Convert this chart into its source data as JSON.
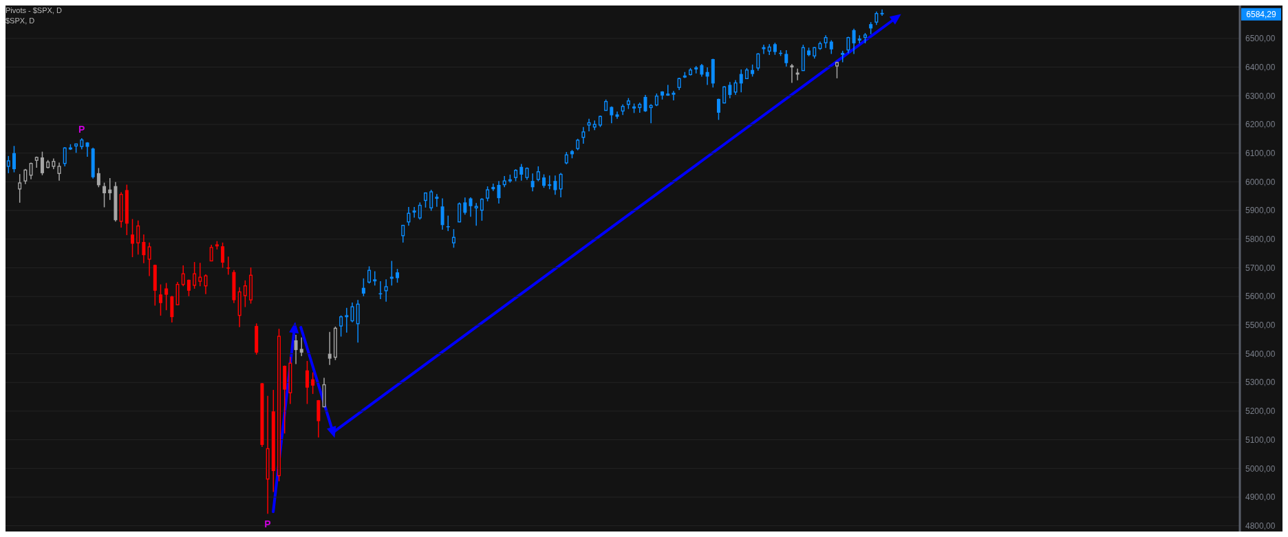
{
  "chart_data": {
    "type": "candlestick",
    "title": "Pivots - $SPX, D",
    "subtitle": "$SPX, D",
    "categories": [
      null,
      null,
      null,
      null,
      null,
      null,
      null,
      null,
      null,
      null,
      null,
      null,
      null,
      null,
      null,
      null,
      null,
      null,
      null,
      null,
      null,
      null,
      null,
      null,
      null,
      null,
      null,
      null,
      null,
      null,
      null,
      null,
      null,
      null,
      null,
      null,
      null,
      null,
      null,
      null,
      null,
      null,
      null,
      null,
      null,
      null,
      null,
      null,
      null,
      null,
      null,
      null,
      null,
      null,
      null,
      null,
      null,
      null,
      null,
      null,
      null,
      null,
      null,
      null,
      null,
      null,
      null,
      null,
      null,
      null,
      null,
      null,
      null,
      null,
      null,
      null,
      null,
      null,
      null,
      null,
      null,
      null,
      null,
      null,
      null,
      null,
      null,
      null,
      null,
      null,
      null,
      null,
      null,
      null,
      null,
      null,
      null,
      null,
      null,
      null,
      null,
      null,
      null,
      null,
      null,
      null,
      null,
      null,
      null,
      null,
      null,
      null,
      null,
      null,
      null,
      null,
      null,
      null,
      null,
      null,
      null,
      null,
      null,
      null,
      null,
      null,
      null,
      null,
      null,
      null,
      null,
      null,
      null,
      null,
      null,
      null,
      null,
      null,
      null,
      null,
      null,
      null,
      null,
      null,
      null,
      null,
      null,
      null,
      null,
      null,
      null,
      null,
      null,
      null,
      null,
      null,
      null,
      null,
      null,
      null,
      null,
      null,
      null,
      null,
      null,
      null,
      null,
      null,
      null,
      null,
      null,
      null,
      null,
      null,
      null,
      null,
      null,
      null,
      null,
      null,
      null,
      null,
      null,
      null,
      null,
      null,
      null,
      null,
      null,
      null,
      null,
      null,
      null,
      null,
      null,
      null,
      null,
      null,
      null,
      null,
      null,
      null,
      null,
      null,
      null,
      null,
      null,
      null,
      null,
      null,
      null,
      null,
      null,
      null,
      null,
      null,
      null,
      null,
      null
    ],
    "ohlc": [
      [
        6054,
        6090,
        6030,
        6073
      ],
      [
        6100,
        6125,
        6033,
        6044
      ],
      [
        5975,
        6027,
        5927,
        5996
      ],
      [
        6003,
        6045,
        5992,
        6041
      ],
      [
        6023,
        6067,
        6009,
        6064
      ],
      [
        6075,
        6088,
        6049,
        6085
      ],
      [
        6085,
        6105,
        6023,
        6030
      ],
      [
        6050,
        6076,
        6047,
        6069
      ],
      [
        6054,
        6081,
        6044,
        6071
      ],
      [
        6029,
        6067,
        6004,
        6054
      ],
      [
        6064,
        6121,
        6054,
        6118
      ],
      [
        6117,
        6131,
        6111,
        6118
      ],
      [
        6125,
        6133,
        6101,
        6132
      ],
      [
        6123,
        6152,
        6113,
        6146
      ],
      [
        6137,
        6138,
        6087,
        6122
      ],
      [
        6116,
        6119,
        6011,
        6016
      ],
      [
        6030,
        6048,
        5981,
        5988
      ],
      [
        5985,
        5997,
        5911,
        5960
      ],
      [
        5973,
        6013,
        5937,
        5960
      ],
      [
        5985,
        5999,
        5861,
        5866
      ],
      [
        5862,
        5964,
        5840,
        5956
      ],
      [
        5971,
        5990,
        5814,
        5854
      ],
      [
        5816,
        5870,
        5737,
        5784
      ],
      [
        5787,
        5865,
        5746,
        5846
      ],
      [
        5790,
        5816,
        5716,
        5744
      ],
      [
        5730,
        5788,
        5671,
        5773
      ],
      [
        5710,
        5711,
        5568,
        5620
      ],
      [
        5607,
        5642,
        5533,
        5577
      ],
      [
        5628,
        5647,
        5552,
        5606
      ],
      [
        5600,
        5602,
        5509,
        5528
      ],
      [
        5571,
        5651,
        5570,
        5642
      ],
      [
        5642,
        5708,
        5636,
        5679
      ],
      [
        5658,
        5659,
        5601,
        5620
      ],
      [
        5639,
        5720,
        5627,
        5679
      ],
      [
        5653,
        5717,
        5636,
        5667
      ],
      [
        5637,
        5677,
        5608,
        5672
      ],
      [
        5724,
        5780,
        5723,
        5771
      ],
      [
        5779,
        5793,
        5764,
        5780
      ],
      [
        5775,
        5788,
        5700,
        5718
      ],
      [
        5701,
        5739,
        5676,
        5700
      ],
      [
        5685,
        5692,
        5577,
        5587
      ],
      [
        5534,
        5632,
        5493,
        5616
      ],
      [
        5603,
        5656,
        5563,
        5637
      ],
      [
        5588,
        5701,
        5575,
        5674
      ],
      [
        5497,
        5506,
        5397,
        5404
      ],
      [
        5297,
        5298,
        5075,
        5082
      ],
      [
        4963,
        5253,
        4842,
        5069
      ],
      [
        5199,
        5274,
        4918,
        4991
      ],
      [
        4975,
        5487,
        4955,
        5461
      ],
      [
        5358,
        5359,
        5122,
        5275
      ],
      [
        5264,
        5389,
        5225,
        5367
      ],
      [
        5447,
        5466,
        5364,
        5413
      ],
      [
        5417,
        5457,
        5392,
        5404
      ],
      [
        5342,
        5375,
        5225,
        5282
      ],
      [
        5311,
        5335,
        5260,
        5289
      ],
      [
        5238,
        5239,
        5108,
        5165
      ],
      [
        5215,
        5316,
        5214,
        5292
      ],
      [
        5400,
        5476,
        5361,
        5383
      ],
      [
        5388,
        5495,
        5378,
        5489
      ],
      [
        5497,
        5534,
        5460,
        5529
      ],
      [
        5532,
        5560,
        5474,
        5533
      ],
      [
        5515,
        5579,
        5510,
        5564
      ],
      [
        5505,
        5588,
        5439,
        5573
      ],
      [
        5630,
        5663,
        5601,
        5610
      ],
      [
        5650,
        5705,
        5645,
        5691
      ],
      [
        5657,
        5688,
        5638,
        5658
      ],
      [
        5611,
        5653,
        5591,
        5610
      ],
      [
        5620,
        5660,
        5582,
        5634
      ],
      [
        5666,
        5724,
        5638,
        5667
      ],
      [
        5684,
        5696,
        5648,
        5664
      ],
      [
        5812,
        5850,
        5788,
        5848
      ],
      [
        5860,
        5912,
        5847,
        5890
      ],
      [
        5897,
        5912,
        5875,
        5898
      ],
      [
        5874,
        5928,
        5868,
        5918
      ],
      [
        5935,
        5963,
        5910,
        5961
      ],
      [
        5909,
        5972,
        5899,
        5965
      ],
      [
        5945,
        5957,
        5913,
        5946
      ],
      [
        5914,
        5942,
        5833,
        5849
      ],
      [
        5845,
        5882,
        5828,
        5844
      ],
      [
        5787,
        5835,
        5770,
        5806
      ],
      [
        5860,
        5928,
        5859,
        5923
      ],
      [
        5928,
        5945,
        5885,
        5892
      ],
      [
        5942,
        5946,
        5878,
        5915
      ],
      [
        5909,
        5926,
        5847,
        5914
      ],
      [
        5901,
        5943,
        5864,
        5939
      ],
      [
        5943,
        5984,
        5932,
        5972
      ],
      [
        5982,
        5994,
        5968,
        5974
      ],
      [
        5989,
        6003,
        5924,
        5943
      ],
      [
        5990,
        6020,
        5981,
        6003
      ],
      [
        6006,
        6025,
        5997,
        6007
      ],
      [
        6015,
        6044,
        6002,
        6040
      ],
      [
        6052,
        6062,
        6004,
        6025
      ],
      [
        6015,
        6050,
        6007,
        6047
      ],
      [
        6003,
        6029,
        5967,
        5981
      ],
      [
        6008,
        6054,
        6002,
        6035
      ],
      [
        6015,
        6026,
        5979,
        5986
      ],
      [
        5991,
        6022,
        5974,
        5986
      ],
      [
        6003,
        6022,
        5955,
        5971
      ],
      [
        5975,
        6031,
        5946,
        6026
      ],
      [
        6066,
        6104,
        6061,
        6094
      ],
      [
        6107,
        6111,
        6082,
        6096
      ],
      [
        6116,
        6150,
        6110,
        6145
      ],
      [
        6155,
        6191,
        6133,
        6174
      ],
      [
        6198,
        6220,
        6176,
        6206
      ],
      [
        6191,
        6214,
        6180,
        6200
      ],
      [
        6198,
        6231,
        6191,
        6228
      ],
      [
        6249,
        6287,
        6248,
        6280
      ],
      [
        6261,
        6263,
        6204,
        6232
      ],
      [
        6235,
        6245,
        6220,
        6227
      ],
      [
        6247,
        6270,
        6233,
        6263
      ],
      [
        6270,
        6292,
        6254,
        6282
      ],
      [
        6260,
        6273,
        6240,
        6261
      ],
      [
        6259,
        6276,
        6241,
        6270
      ],
      [
        6296,
        6303,
        6244,
        6246
      ],
      [
        6259,
        6271,
        6204,
        6266
      ],
      [
        6268,
        6308,
        6264,
        6299
      ],
      [
        6315,
        6316,
        6287,
        6301
      ],
      [
        6305,
        6338,
        6300,
        6306
      ],
      [
        6308,
        6317,
        6284,
        6309
      ],
      [
        6329,
        6363,
        6320,
        6360
      ],
      [
        6368,
        6383,
        6362,
        6369
      ],
      [
        6374,
        6397,
        6371,
        6390
      ],
      [
        6399,
        6404,
        6378,
        6392
      ],
      [
        6407,
        6411,
        6367,
        6374
      ],
      [
        6383,
        6399,
        6338,
        6367
      ],
      [
        6428,
        6429,
        6329,
        6343
      ],
      [
        6289,
        6290,
        6216,
        6241
      ],
      [
        6275,
        6334,
        6274,
        6331
      ],
      [
        6338,
        6348,
        6291,
        6303
      ],
      [
        6313,
        6355,
        6303,
        6345
      ],
      [
        6376,
        6392,
        6312,
        6343
      ],
      [
        6360,
        6397,
        6359,
        6390
      ],
      [
        6390,
        6409,
        6367,
        6376
      ],
      [
        6397,
        6449,
        6388,
        6446
      ],
      [
        6467,
        6478,
        6446,
        6468
      ],
      [
        6456,
        6480,
        6442,
        6470
      ],
      [
        6480,
        6485,
        6443,
        6453
      ],
      [
        6450,
        6459,
        6439,
        6449
      ],
      [
        6446,
        6459,
        6402,
        6414
      ],
      [
        6406,
        6411,
        6345,
        6399
      ],
      [
        6381,
        6395,
        6354,
        6374
      ],
      [
        6388,
        6478,
        6387,
        6468
      ],
      [
        6458,
        6468,
        6438,
        6442
      ],
      [
        6439,
        6470,
        6430,
        6468
      ],
      [
        6465,
        6489,
        6460,
        6482
      ],
      [
        6485,
        6511,
        6467,
        6503
      ],
      [
        6489,
        6494,
        6446,
        6462
      ],
      [
        6404,
        6419,
        6361,
        6416
      ],
      [
        6447,
        6457,
        6417,
        6448
      ],
      [
        6460,
        6506,
        6448,
        6503
      ],
      [
        6529,
        6534,
        6446,
        6483
      ],
      [
        6497,
        6511,
        6483,
        6498
      ],
      [
        6504,
        6519,
        6483,
        6512
      ],
      [
        6550,
        6557,
        6515,
        6535
      ],
      [
        6557,
        6594,
        6547,
        6587
      ],
      [
        6589,
        6601,
        6579,
        6584.29
      ],
      null,
      null,
      null,
      null,
      null,
      null,
      null,
      null,
      null,
      null,
      null,
      null,
      null,
      null,
      null,
      null,
      null,
      null,
      null,
      null,
      null,
      null,
      null,
      null,
      null,
      null,
      null,
      null,
      null,
      null,
      null,
      null,
      null,
      null,
      null,
      null,
      null,
      null,
      null,
      null,
      null,
      null,
      null,
      null,
      null,
      null,
      null,
      null,
      null,
      null,
      null,
      null,
      null,
      null,
      null,
      null,
      null,
      null,
      null,
      null,
      null,
      null,
      null
    ],
    "colors": [
      "#0a8cff",
      "#0a8cff",
      "#a6a6a6",
      "#a6a6a6",
      "#a6a6a6",
      "#a6a6a6",
      "#a6a6a6",
      "#a6a6a6",
      "#a6a6a6",
      "#a6a6a6",
      "#0a8cff",
      "#0a8cff",
      "#0a8cff",
      "#0a8cff",
      "#0a8cff",
      "#0a8cff",
      "#a6a6a6",
      "#a6a6a6",
      "#a6a6a6",
      "#a6a6a6",
      "#ff0000",
      "#ff0000",
      "#ff0000",
      "#ff0000",
      "#ff0000",
      "#ff0000",
      "#ff0000",
      "#ff0000",
      "#ff0000",
      "#ff0000",
      "#ff0000",
      "#ff0000",
      "#ff0000",
      "#ff0000",
      "#ff0000",
      "#ff0000",
      "#ff0000",
      "#ff0000",
      "#ff0000",
      "#ff0000",
      "#ff0000",
      "#ff0000",
      "#ff0000",
      "#ff0000",
      "#ff0000",
      "#ff0000",
      "#ff0000",
      "#ff0000",
      "#ff0000",
      "#ff0000",
      "#ff0000",
      "#a6a6a6",
      "#a6a6a6",
      "#ff0000",
      "#ff0000",
      "#ff0000",
      "#a6a6a6",
      "#a6a6a6",
      "#a6a6a6",
      "#0a8cff",
      "#0a8cff",
      "#0a8cff",
      "#0a8cff",
      "#0a8cff",
      "#0a8cff",
      "#0a8cff",
      "#0a8cff",
      "#0a8cff",
      "#0a8cff",
      "#0a8cff",
      "#0a8cff",
      "#0a8cff",
      "#0a8cff",
      "#0a8cff",
      "#0a8cff",
      "#0a8cff",
      "#0a8cff",
      "#0a8cff",
      "#0a8cff",
      "#0a8cff",
      "#0a8cff",
      "#0a8cff",
      "#0a8cff",
      "#0a8cff",
      "#0a8cff",
      "#0a8cff",
      "#0a8cff",
      "#0a8cff",
      "#0a8cff",
      "#0a8cff",
      "#0a8cff",
      "#0a8cff",
      "#0a8cff",
      "#0a8cff",
      "#0a8cff",
      "#0a8cff",
      "#0a8cff",
      "#0a8cff",
      "#0a8cff",
      "#0a8cff",
      "#0a8cff",
      "#0a8cff",
      "#0a8cff",
      "#0a8cff",
      "#0a8cff",
      "#0a8cff",
      "#0a8cff",
      "#0a8cff",
      "#0a8cff",
      "#0a8cff",
      "#0a8cff",
      "#0a8cff",
      "#0a8cff",
      "#0a8cff",
      "#0a8cff",
      "#0a8cff",
      "#0a8cff",
      "#0a8cff",
      "#0a8cff",
      "#0a8cff",
      "#0a8cff",
      "#0a8cff",
      "#0a8cff",
      "#0a8cff",
      "#0a8cff",
      "#0a8cff",
      "#0a8cff",
      "#0a8cff",
      "#0a8cff",
      "#0a8cff",
      "#0a8cff",
      "#0a8cff",
      "#0a8cff",
      "#0a8cff",
      "#0a8cff",
      "#0a8cff",
      "#0a8cff",
      "#0a8cff",
      "#0a8cff",
      "#a6a6a6",
      "#a6a6a6",
      "#0a8cff",
      "#0a8cff",
      "#0a8cff",
      "#0a8cff",
      "#0a8cff",
      "#0a8cff",
      "#a6a6a6",
      "#0a8cff",
      "#0a8cff",
      "#0a8cff",
      "#0a8cff",
      "#0a8cff",
      "#0a8cff",
      "#0a8cff",
      "#0a8cff",
      null,
      null,
      null,
      null,
      null,
      null,
      null,
      null,
      null,
      null,
      null,
      null,
      null,
      null,
      null,
      null,
      null,
      null,
      null,
      null,
      null,
      null,
      null,
      null,
      null,
      null,
      null,
      null,
      null,
      null,
      null,
      null,
      null,
      null,
      null,
      null,
      null,
      null,
      null,
      null,
      null,
      null,
      null,
      null,
      null,
      null,
      null,
      null,
      null,
      null,
      null,
      null,
      null,
      null,
      null,
      null,
      null,
      null,
      null,
      null,
      null,
      null,
      null
    ],
    "ylim": [
      4780,
      6615
    ],
    "yticks": [
      {
        "value": 4800,
        "label": "4800,00"
      },
      {
        "value": 4900,
        "label": "4900,00"
      },
      {
        "value": 5000,
        "label": "5000,00"
      },
      {
        "value": 5100,
        "label": "5100,00"
      },
      {
        "value": 5200,
        "label": "5200,00"
      },
      {
        "value": 5300,
        "label": "5300,00"
      },
      {
        "value": 5400,
        "label": "5400,00"
      },
      {
        "value": 5500,
        "label": "5500,00"
      },
      {
        "value": 5600,
        "label": "5600,00"
      },
      {
        "value": 5700,
        "label": "5700,00"
      },
      {
        "value": 5800,
        "label": "5800,00"
      },
      {
        "value": 5900,
        "label": "5900,00"
      },
      {
        "value": 6000,
        "label": "6000,00"
      },
      {
        "value": 6100,
        "label": "6100,00"
      },
      {
        "value": 6200,
        "label": "6200,00"
      },
      {
        "value": 6300,
        "label": "6300,00"
      },
      {
        "value": 6400,
        "label": "6400,00"
      },
      {
        "value": 6500,
        "label": "6500,00"
      }
    ],
    "grid": "y",
    "tick_labels": "y",
    "annotations": [
      {
        "text": "P",
        "y": 6152
      },
      {
        "text": "P",
        "y": 4842
      },
      "6584,29"
    ]
  }
}
